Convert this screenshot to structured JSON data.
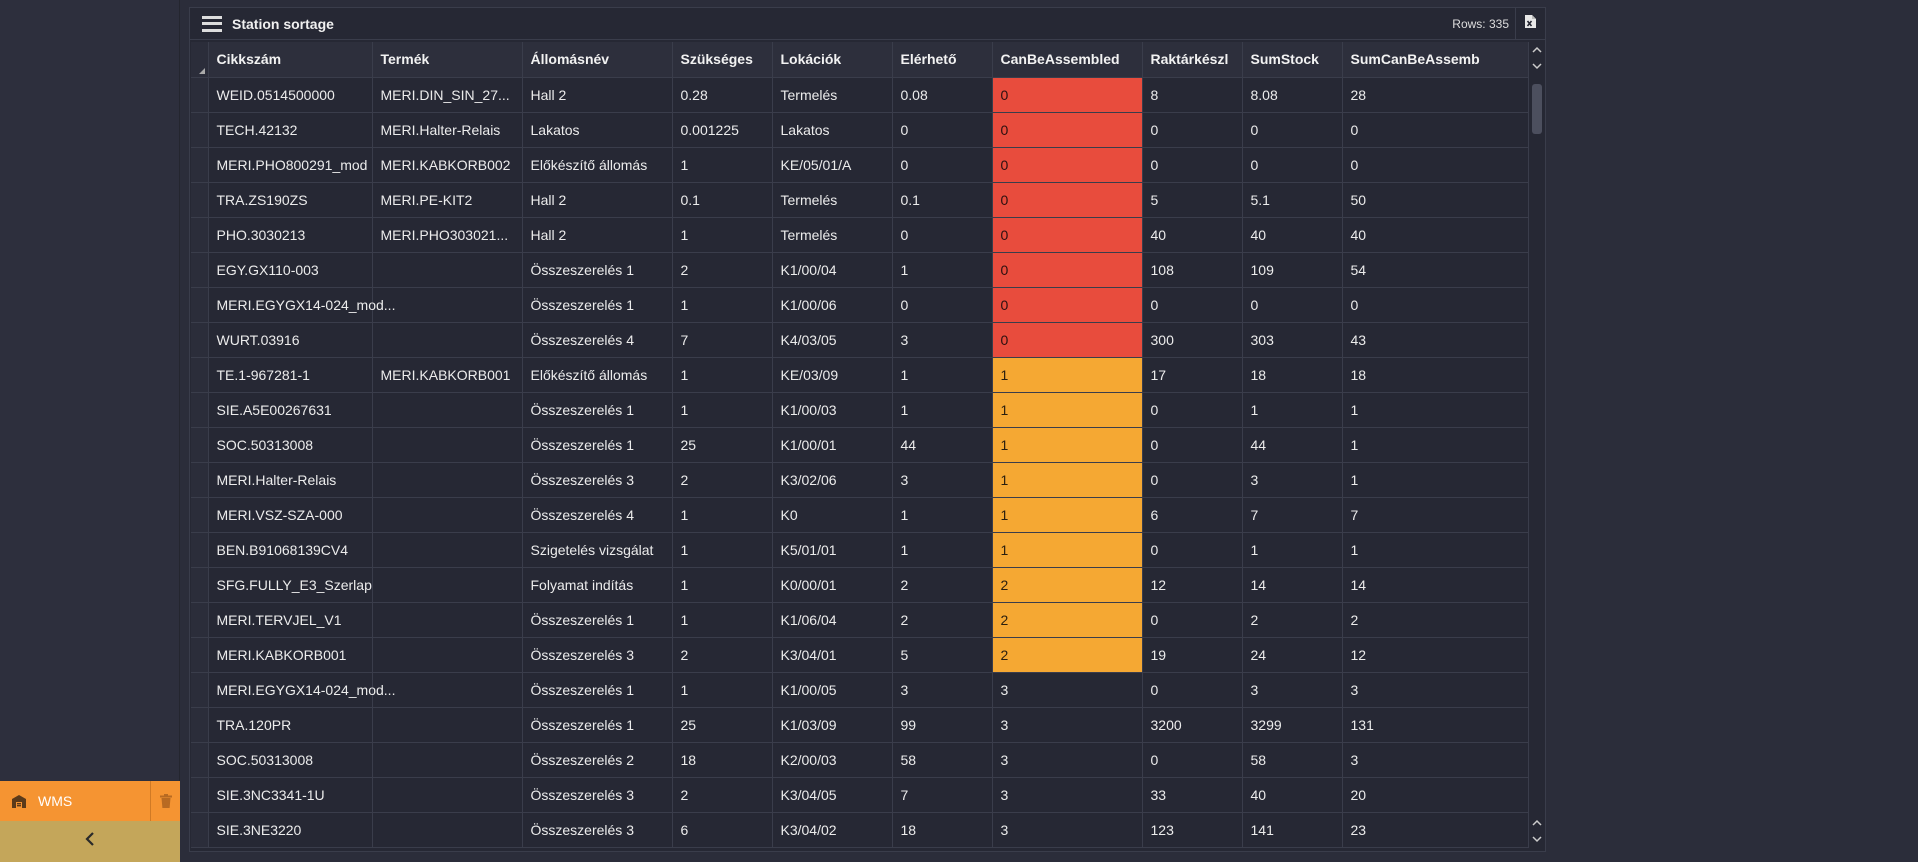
{
  "panel": {
    "title": "Station sortage",
    "rows_label": "Rows: 335"
  },
  "sidebar": {
    "module_label": "WMS",
    "colors": {
      "module": "#f59432",
      "collapse": "#c4a65a"
    }
  },
  "table": {
    "columns": [
      "Cikkszám",
      "Termék",
      "Állomásnév",
      "Szükséges",
      "Lokációk",
      "Elérhető",
      "CanBeAssembled",
      "Raktárkészl",
      "SumStock",
      "SumCanBeAssemb"
    ],
    "status_colors": {
      "red": "#e84c3d",
      "orange": "#f5a833"
    },
    "rows": [
      {
        "cikkszam": "WEID.0514500000",
        "termek": "MERI.DIN_SIN_27...",
        "allomas": "Hall 2",
        "szukseges": "0.28",
        "lokaciok": "Termelés",
        "elerheto": "0.08",
        "canbe": "0",
        "raktar": "8",
        "sumstock": "8.08",
        "sumcanbe": "28",
        "status": "red"
      },
      {
        "cikkszam": "TECH.42132",
        "termek": "MERI.Halter-Relais",
        "allomas": "Lakatos",
        "szukseges": "0.001225",
        "lokaciok": "Lakatos",
        "elerheto": "0",
        "canbe": "0",
        "raktar": "0",
        "sumstock": "0",
        "sumcanbe": "0",
        "status": "red"
      },
      {
        "cikkszam": "MERI.PHO800291_mod",
        "termek": "MERI.KABKORB002",
        "allomas": "Előkészítő állomás",
        "szukseges": "1",
        "lokaciok": "KE/05/01/A",
        "elerheto": "0",
        "canbe": "0",
        "raktar": "0",
        "sumstock": "0",
        "sumcanbe": "0",
        "status": "red"
      },
      {
        "cikkszam": "TRA.ZS190ZS",
        "termek": "MERI.PE-KIT2",
        "allomas": "Hall 2",
        "szukseges": "0.1",
        "lokaciok": "Termelés",
        "elerheto": "0.1",
        "canbe": "0",
        "raktar": "5",
        "sumstock": "5.1",
        "sumcanbe": "50",
        "status": "red"
      },
      {
        "cikkszam": "PHO.3030213",
        "termek": "MERI.PHO303021...",
        "allomas": "Hall 2",
        "szukseges": "1",
        "lokaciok": "Termelés",
        "elerheto": "0",
        "canbe": "0",
        "raktar": "40",
        "sumstock": "40",
        "sumcanbe": "40",
        "status": "red"
      },
      {
        "cikkszam": "EGY.GX110-003",
        "termek": "",
        "allomas": "Összeszerelés 1",
        "szukseges": "2",
        "lokaciok": "K1/00/04",
        "elerheto": "1",
        "canbe": "0",
        "raktar": "108",
        "sumstock": "109",
        "sumcanbe": "54",
        "status": "red"
      },
      {
        "cikkszam": "MERI.EGYGX14-024_mod...",
        "termek": "",
        "allomas": "Összeszerelés 1",
        "szukseges": "1",
        "lokaciok": "K1/00/06",
        "elerheto": "0",
        "canbe": "0",
        "raktar": "0",
        "sumstock": "0",
        "sumcanbe": "0",
        "status": "red"
      },
      {
        "cikkszam": "WURT.03916",
        "termek": "",
        "allomas": "Összeszerelés 4",
        "szukseges": "7",
        "lokaciok": "K4/03/05",
        "elerheto": "3",
        "canbe": "0",
        "raktar": "300",
        "sumstock": "303",
        "sumcanbe": "43",
        "status": "red"
      },
      {
        "cikkszam": "TE.1-967281-1",
        "termek": "MERI.KABKORB001",
        "allomas": "Előkészítő állomás",
        "szukseges": "1",
        "lokaciok": "KE/03/09",
        "elerheto": "1",
        "canbe": "1",
        "raktar": "17",
        "sumstock": "18",
        "sumcanbe": "18",
        "status": "orange"
      },
      {
        "cikkszam": "SIE.A5E00267631",
        "termek": "",
        "allomas": "Összeszerelés 1",
        "szukseges": "1",
        "lokaciok": "K1/00/03",
        "elerheto": "1",
        "canbe": "1",
        "raktar": "0",
        "sumstock": "1",
        "sumcanbe": "1",
        "status": "orange"
      },
      {
        "cikkszam": "SOC.50313008",
        "termek": "",
        "allomas": "Összeszerelés 1",
        "szukseges": "25",
        "lokaciok": "K1/00/01",
        "elerheto": "44",
        "canbe": "1",
        "raktar": "0",
        "sumstock": "44",
        "sumcanbe": "1",
        "status": "orange"
      },
      {
        "cikkszam": "MERI.Halter-Relais",
        "termek": "",
        "allomas": "Összeszerelés 3",
        "szukseges": "2",
        "lokaciok": "K3/02/06",
        "elerheto": "3",
        "canbe": "1",
        "raktar": "0",
        "sumstock": "3",
        "sumcanbe": "1",
        "status": "orange"
      },
      {
        "cikkszam": "MERI.VSZ-SZA-000",
        "termek": "",
        "allomas": "Összeszerelés 4",
        "szukseges": "1",
        "lokaciok": "K0",
        "elerheto": "1",
        "canbe": "1",
        "raktar": "6",
        "sumstock": "7",
        "sumcanbe": "7",
        "status": "orange"
      },
      {
        "cikkszam": "BEN.B91068139CV4",
        "termek": "",
        "allomas": "Szigetelés vizsgálat",
        "szukseges": "1",
        "lokaciok": "K5/01/01",
        "elerheto": "1",
        "canbe": "1",
        "raktar": "0",
        "sumstock": "1",
        "sumcanbe": "1",
        "status": "orange"
      },
      {
        "cikkszam": "SFG.FULLY_E3_Szerlap",
        "termek": "",
        "allomas": "Folyamat indítás",
        "szukseges": "1",
        "lokaciok": "K0/00/01",
        "elerheto": "2",
        "canbe": "2",
        "raktar": "12",
        "sumstock": "14",
        "sumcanbe": "14",
        "status": "orange"
      },
      {
        "cikkszam": "MERI.TERVJEL_V1",
        "termek": "",
        "allomas": "Összeszerelés 1",
        "szukseges": "1",
        "lokaciok": "K1/06/04",
        "elerheto": "2",
        "canbe": "2",
        "raktar": "0",
        "sumstock": "2",
        "sumcanbe": "2",
        "status": "orange"
      },
      {
        "cikkszam": "MERI.KABKORB001",
        "termek": "",
        "allomas": "Összeszerelés 3",
        "szukseges": "2",
        "lokaciok": "K3/04/01",
        "elerheto": "5",
        "canbe": "2",
        "raktar": "19",
        "sumstock": "24",
        "sumcanbe": "12",
        "status": "orange"
      },
      {
        "cikkszam": "MERI.EGYGX14-024_mod...",
        "termek": "",
        "allomas": "Összeszerelés 1",
        "szukseges": "1",
        "lokaciok": "K1/00/05",
        "elerheto": "3",
        "canbe": "3",
        "raktar": "0",
        "sumstock": "3",
        "sumcanbe": "3",
        "status": ""
      },
      {
        "cikkszam": "TRA.120PR",
        "termek": "",
        "allomas": "Összeszerelés 1",
        "szukseges": "25",
        "lokaciok": "K1/03/09",
        "elerheto": "99",
        "canbe": "3",
        "raktar": "3200",
        "sumstock": "3299",
        "sumcanbe": "131",
        "status": ""
      },
      {
        "cikkszam": "SOC.50313008",
        "termek": "",
        "allomas": "Összeszerelés 2",
        "szukseges": "18",
        "lokaciok": "K2/00/03",
        "elerheto": "58",
        "canbe": "3",
        "raktar": "0",
        "sumstock": "58",
        "sumcanbe": "3",
        "status": ""
      },
      {
        "cikkszam": "SIE.3NC3341-1U",
        "termek": "",
        "allomas": "Összeszerelés 3",
        "szukseges": "2",
        "lokaciok": "K3/04/05",
        "elerheto": "7",
        "canbe": "3",
        "raktar": "33",
        "sumstock": "40",
        "sumcanbe": "20",
        "status": ""
      },
      {
        "cikkszam": "SIE.3NE3220",
        "termek": "",
        "allomas": "Összeszerelés 3",
        "szukseges": "6",
        "lokaciok": "K3/04/02",
        "elerheto": "18",
        "canbe": "3",
        "raktar": "123",
        "sumstock": "141",
        "sumcanbe": "23",
        "status": ""
      }
    ]
  }
}
